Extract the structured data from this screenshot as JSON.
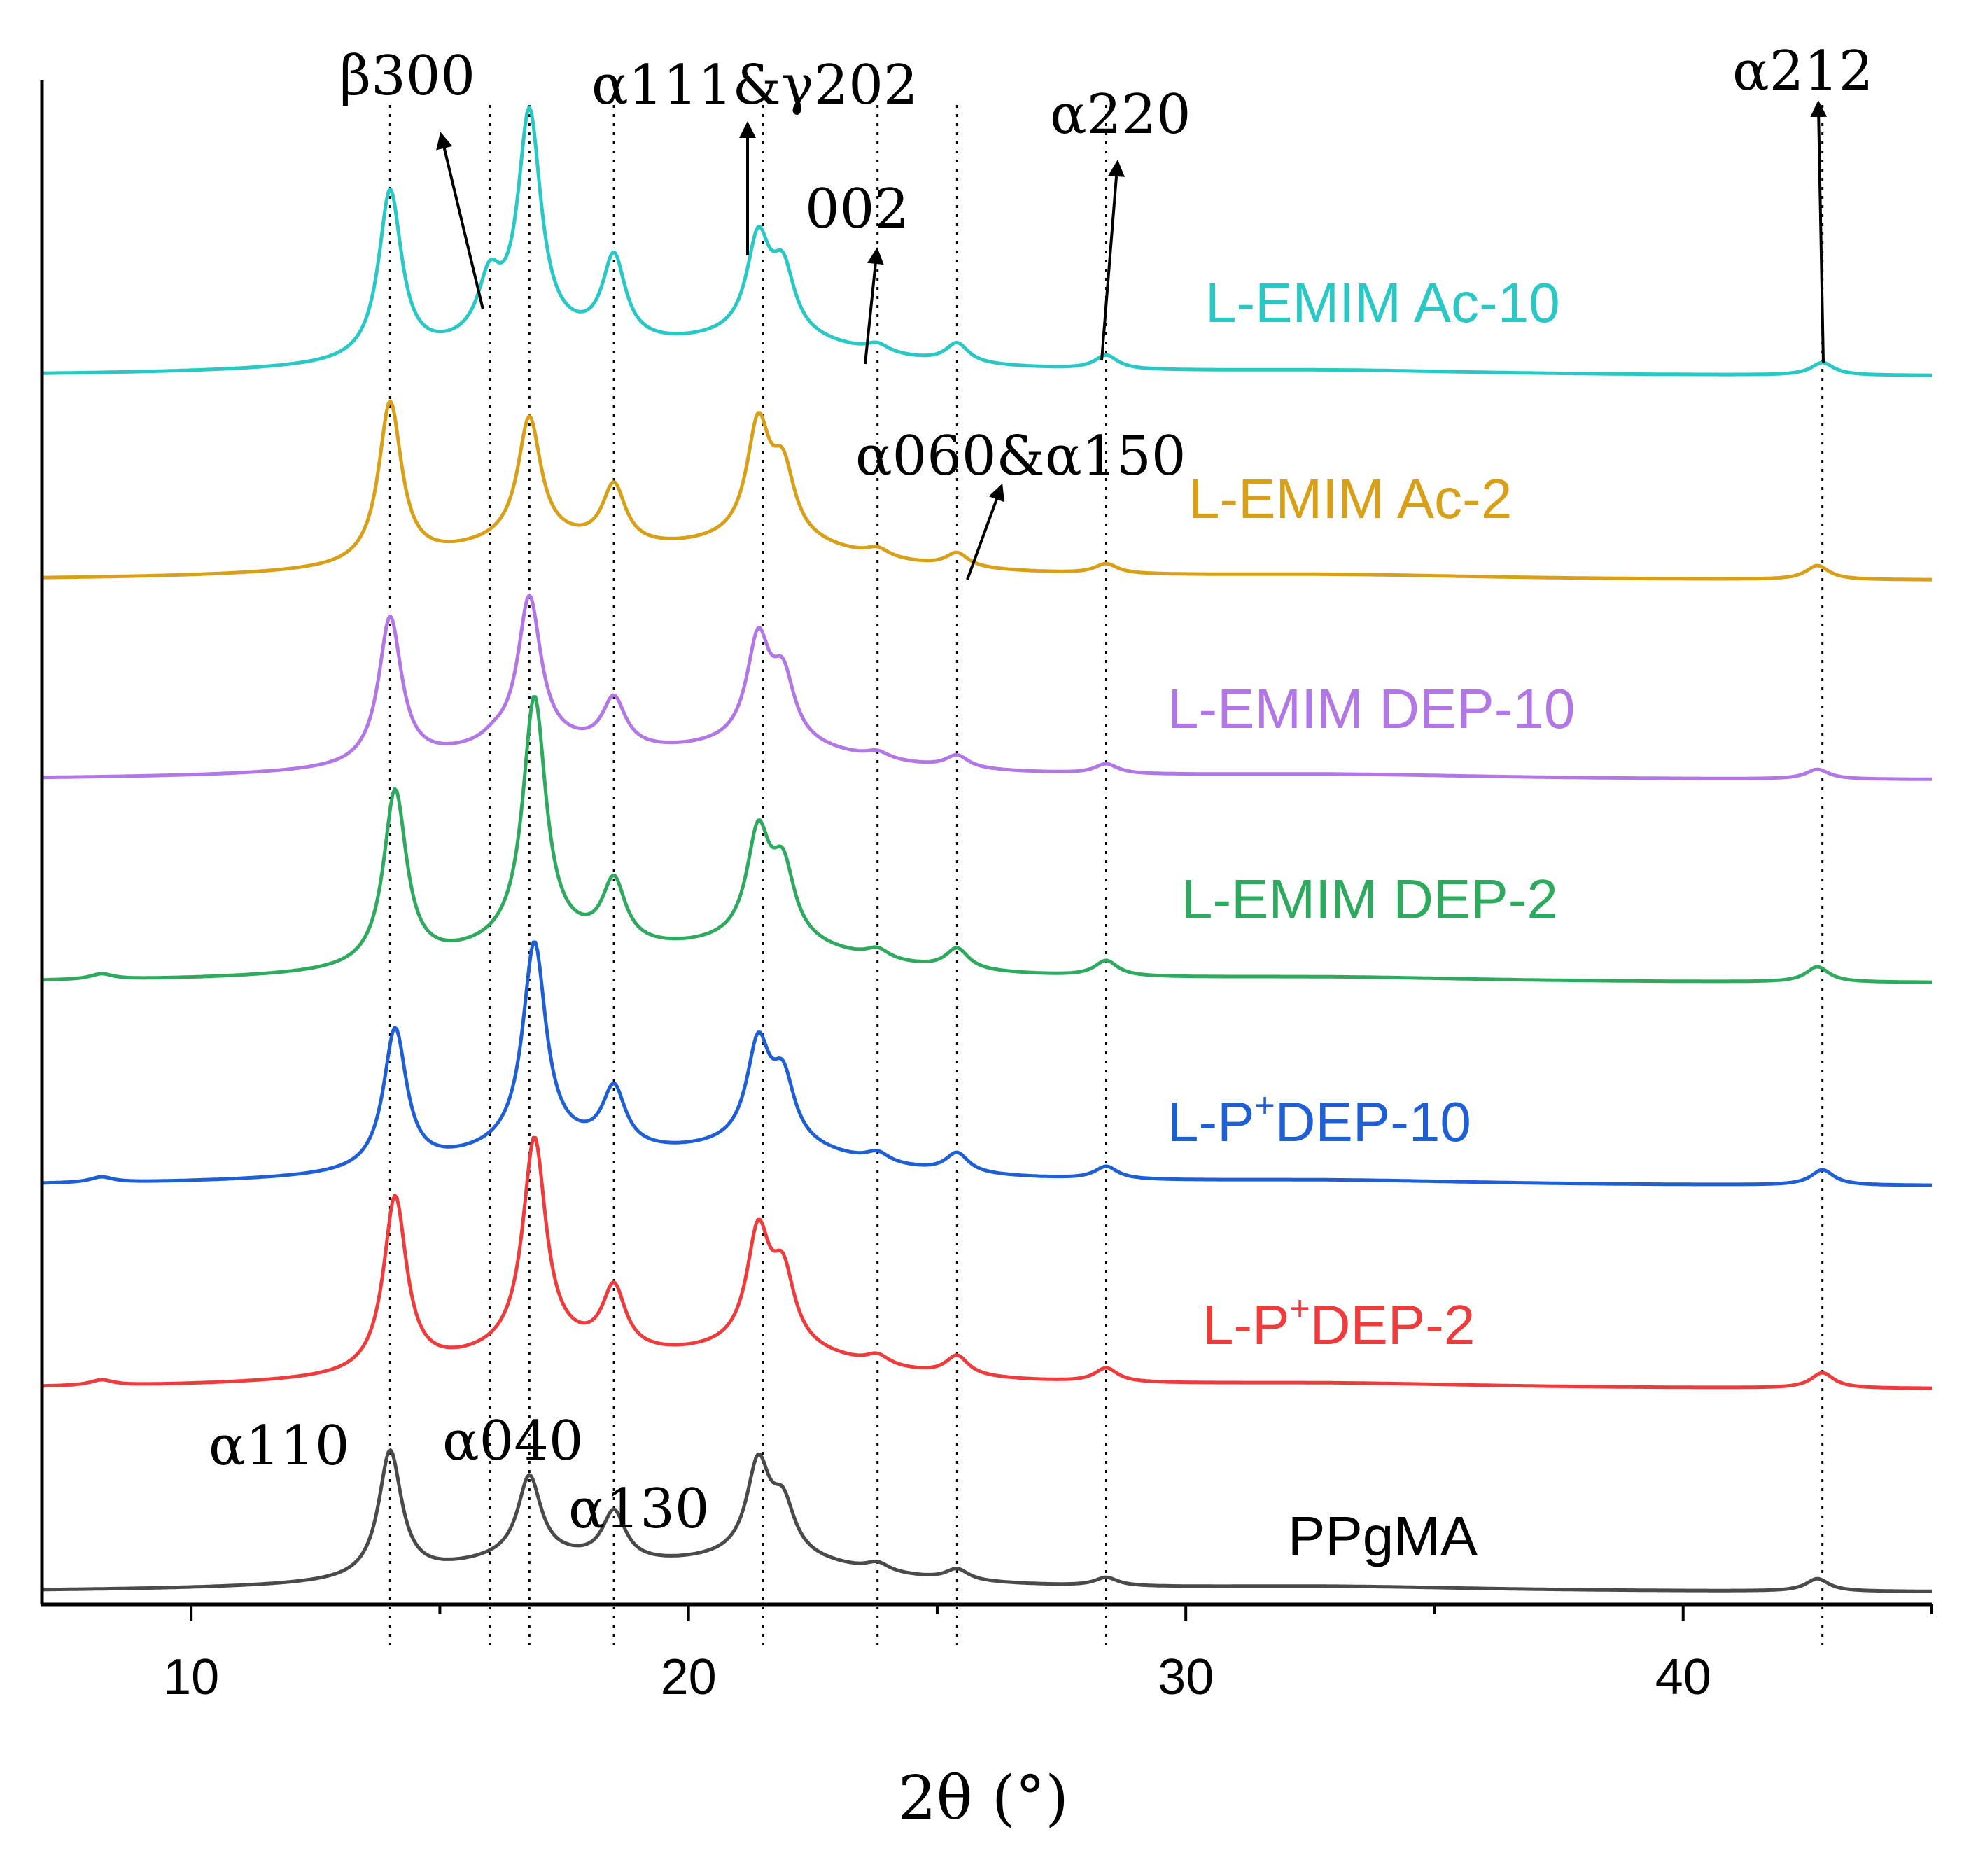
{
  "chart_data": {
    "type": "line",
    "title": "",
    "xlabel": "2θ (°)",
    "ylabel": "",
    "xlim": [
      7,
      45
    ],
    "xticks": [
      10,
      20,
      30,
      40
    ],
    "xtick_labels": [
      "10",
      "20",
      "30",
      "40"
    ],
    "grid": false,
    "series": [
      {
        "name": "PPgMA",
        "color": "#4a4a4a",
        "label": "PPgMA",
        "label_parts": [
          "PPgMA"
        ],
        "peaks": [
          [
            14.0,
            180
          ],
          [
            16.8,
            115
          ],
          [
            18.5,
            70
          ],
          [
            21.4,
            130
          ],
          [
            21.9,
            70
          ],
          [
            23.8,
            12
          ],
          [
            25.4,
            16
          ],
          [
            28.4,
            12
          ],
          [
            42.7,
            18
          ]
        ],
        "wide": [
          [
            16.8,
            40,
            2.5
          ],
          [
            21.6,
            40,
            2.5
          ],
          [
            33,
            6,
            4
          ]
        ]
      },
      {
        "name": "L-P+DEP-2",
        "color": "#ef3b3b",
        "label": "L-P+DEP-2",
        "label_parts": [
          "L-P",
          "+",
          "DEP-2"
        ],
        "peaks": [
          [
            8.2,
            8
          ],
          [
            14.1,
            250
          ],
          [
            16.9,
            300
          ],
          [
            18.5,
            90
          ],
          [
            21.4,
            160
          ],
          [
            21.9,
            100
          ],
          [
            23.8,
            14
          ],
          [
            25.4,
            28
          ],
          [
            28.4,
            20
          ],
          [
            42.8,
            22
          ]
        ],
        "wide": [
          [
            17,
            45,
            2.5
          ],
          [
            21.6,
            45,
            2.5
          ],
          [
            33,
            6,
            4
          ]
        ]
      },
      {
        "name": "L-P+DEP-10",
        "color": "#1f5fd6",
        "label": "L-P+DEP-10",
        "label_parts": [
          "L-P",
          "+",
          "DEP-10"
        ],
        "peaks": [
          [
            8.2,
            8
          ],
          [
            14.1,
            200
          ],
          [
            16.9,
            290
          ],
          [
            18.5,
            85
          ],
          [
            21.4,
            140
          ],
          [
            21.9,
            90
          ],
          [
            23.8,
            14
          ],
          [
            25.4,
            28
          ],
          [
            28.4,
            18
          ],
          [
            42.8,
            22
          ]
        ],
        "wide": [
          [
            17,
            45,
            2.5
          ],
          [
            21.6,
            45,
            2.5
          ],
          [
            33,
            6,
            4
          ]
        ]
      },
      {
        "name": "L-EMIM DEP-2",
        "color": "#2eaa5f",
        "label": "L-EMIM DEP-2",
        "label_parts": [
          "L-EMIM DEP-2"
        ],
        "peaks": [
          [
            8.2,
            8
          ],
          [
            14.1,
            250
          ],
          [
            16.9,
            350
          ],
          [
            18.5,
            90
          ],
          [
            21.4,
            150
          ],
          [
            21.9,
            100
          ],
          [
            23.8,
            14
          ],
          [
            25.4,
            30
          ],
          [
            28.4,
            22
          ],
          [
            42.7,
            22
          ]
        ],
        "wide": [
          [
            17,
            45,
            2.5
          ],
          [
            21.6,
            45,
            2.5
          ],
          [
            33,
            6,
            4
          ]
        ]
      },
      {
        "name": "L-EMIM DEP-10",
        "color": "#b276e6",
        "label": "L-EMIM DEP-10",
        "label_parts": [
          "L-EMIM DEP-10"
        ],
        "peaks": [
          [
            14.0,
            210
          ],
          [
            16.1,
            8
          ],
          [
            16.8,
            210
          ],
          [
            18.5,
            70
          ],
          [
            21.4,
            145
          ],
          [
            21.9,
            90
          ],
          [
            23.8,
            10
          ],
          [
            25.4,
            18
          ],
          [
            28.4,
            14
          ],
          [
            42.7,
            14
          ]
        ],
        "wide": [
          [
            16.8,
            40,
            2.5
          ],
          [
            21.6,
            40,
            2.5
          ],
          [
            33,
            6,
            4
          ]
        ]
      },
      {
        "name": "L-EMIM Ac-2",
        "color": "#d9a017",
        "label": "L-EMIM Ac-2",
        "label_parts": [
          "L-EMIM Ac-2"
        ],
        "peaks": [
          [
            14.0,
            230
          ],
          [
            16.8,
            175
          ],
          [
            18.5,
            85
          ],
          [
            21.4,
            160
          ],
          [
            21.9,
            95
          ],
          [
            23.8,
            12
          ],
          [
            25.4,
            20
          ],
          [
            28.4,
            14
          ],
          [
            42.7,
            20
          ]
        ],
        "wide": [
          [
            16.8,
            45,
            2.5
          ],
          [
            21.6,
            45,
            2.5
          ],
          [
            33,
            6,
            4
          ]
        ]
      },
      {
        "name": "L-EMIM Ac-10",
        "color": "#27c8c6",
        "label": "L-EMIM Ac-10",
        "label_parts": [
          "L-EMIM Ac-10"
        ],
        "peaks": [
          [
            14.0,
            240
          ],
          [
            16.0,
            80
          ],
          [
            16.8,
            320
          ],
          [
            18.5,
            120
          ],
          [
            21.4,
            135
          ],
          [
            21.9,
            90
          ],
          [
            23.8,
            12
          ],
          [
            25.4,
            28
          ],
          [
            28.4,
            20
          ],
          [
            42.8,
            18
          ]
        ],
        "wide": [
          [
            16.8,
            40,
            2.5
          ],
          [
            21.6,
            45,
            2.5
          ],
          [
            33,
            6,
            4
          ]
        ]
      }
    ],
    "reference_lines": [
      14.0,
      16.0,
      16.8,
      18.5,
      21.5,
      23.8,
      25.4,
      28.4,
      42.8
    ],
    "annotations": [
      {
        "id": "b300",
        "text": "β300"
      },
      {
        "id": "a111",
        "text": "α111&γ202"
      },
      {
        "id": "n002",
        "text": "002"
      },
      {
        "id": "a220",
        "text": "α220"
      },
      {
        "id": "a212",
        "text": "α212"
      },
      {
        "id": "a060",
        "text": "α060&α150"
      },
      {
        "id": "a110",
        "text": "α110"
      },
      {
        "id": "a040",
        "text": "α040"
      },
      {
        "id": "a130",
        "text": "α130"
      }
    ]
  }
}
